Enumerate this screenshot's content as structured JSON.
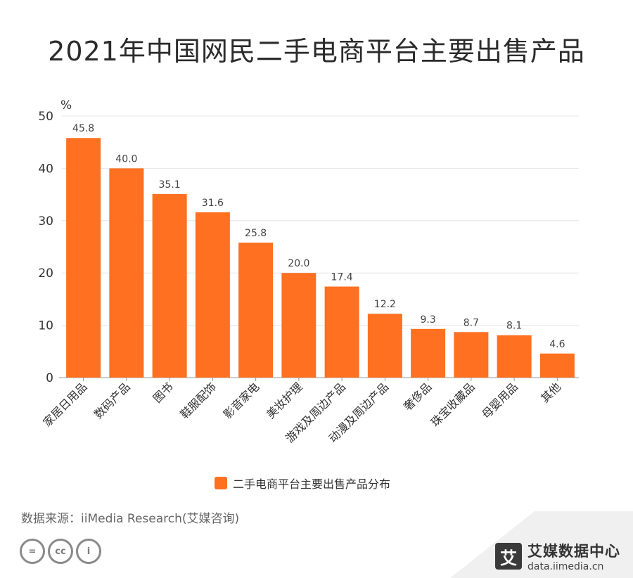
{
  "title": "2021年中国网民二手电商平台主要出售产品",
  "source_text": "数据来源：iiMedia Research(艾媒咨询)",
  "brand": {
    "mark": "艾",
    "name": "艾媒数据中心",
    "url": "data.iimedia.cn"
  },
  "license_icons": [
    {
      "name": "equal-icon",
      "glyph": "="
    },
    {
      "name": "cc-icon",
      "glyph": "cc"
    },
    {
      "name": "person-icon",
      "glyph": "i"
    }
  ],
  "colors": {
    "bar": "#ff7020",
    "grid": "#e6e6e6",
    "axis": "#999999"
  },
  "chart_data": {
    "type": "bar",
    "title": "2021年中国网民二手电商平台主要出售产品",
    "ylabel": "%",
    "xlabel": "",
    "ylim": [
      0,
      50
    ],
    "yticks": [
      0,
      10,
      20,
      30,
      40,
      50
    ],
    "categories": [
      "家居日用品",
      "数码产品",
      "图书",
      "鞋服配饰",
      "影音家电",
      "美妆护理",
      "游戏及周边产品",
      "动漫及周边产品",
      "奢侈品",
      "珠宝收藏品",
      "母婴用品",
      "其他"
    ],
    "series": [
      {
        "name": "二手电商平台主要出售产品分布",
        "values": [
          45.8,
          40.0,
          35.1,
          31.6,
          25.8,
          20.0,
          17.4,
          12.2,
          9.3,
          8.7,
          8.1,
          4.6
        ],
        "labels": [
          "45.8",
          "40.0",
          "35.1",
          "31.6",
          "25.8",
          "20.0",
          "17.4",
          "12.2",
          "9.3",
          "8.7",
          "8.1",
          "4.6"
        ]
      }
    ],
    "grid": true,
    "legend": "bottom"
  }
}
